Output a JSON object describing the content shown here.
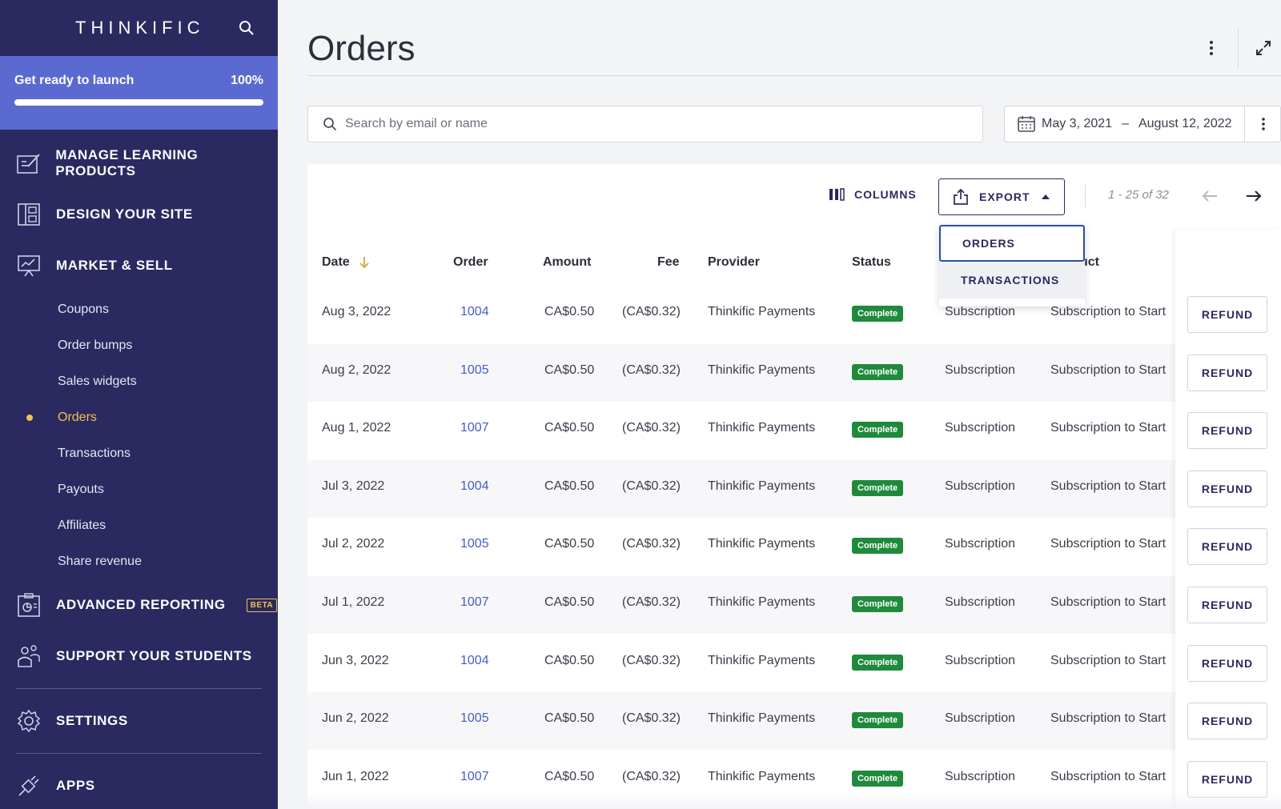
{
  "sidebar": {
    "logo": "THINKIFIC",
    "launch": {
      "label": "Get ready to launch",
      "percent": "100%",
      "progress": 1.0
    },
    "main_items": [
      {
        "label": "MANAGE LEARNING PRODUCTS",
        "icon": "edit-icon"
      },
      {
        "label": "DESIGN YOUR SITE",
        "icon": "layout-icon"
      },
      {
        "label": "MARKET & SELL",
        "icon": "presentation-icon"
      }
    ],
    "sub_items": [
      {
        "label": "Coupons",
        "active": false
      },
      {
        "label": "Order bumps",
        "active": false
      },
      {
        "label": "Sales widgets",
        "active": false
      },
      {
        "label": "Orders",
        "active": true
      },
      {
        "label": "Transactions",
        "active": false
      },
      {
        "label": "Payouts",
        "active": false
      },
      {
        "label": "Affiliates",
        "active": false
      },
      {
        "label": "Share revenue",
        "active": false
      }
    ],
    "advanced_reporting": {
      "label": "ADVANCED REPORTING",
      "badge": "BETA"
    },
    "support": "SUPPORT YOUR STUDENTS",
    "settings": "SETTINGS",
    "apps": "APPS",
    "accent": "#f3c14b"
  },
  "header": {
    "title": "Orders"
  },
  "search": {
    "placeholder": "Search by email or name",
    "value": ""
  },
  "date_range": {
    "start": "May 3, 2021",
    "separator": "–",
    "end": "August 12, 2022"
  },
  "toolbar": {
    "columns_label": "COLUMNS",
    "export_label": "EXPORT",
    "pagination": "1 - 25 of 32",
    "export_menu": [
      "ORDERS",
      "TRANSACTIONS"
    ]
  },
  "table": {
    "headers": [
      "Date",
      "Order",
      "Amount",
      "Fee",
      "Provider",
      "Status",
      "",
      "uct"
    ],
    "refund_label": "REFUND",
    "rows": [
      {
        "date": "Aug 3, 2022",
        "order": "1004",
        "amount": "CA$0.50",
        "fee": "(CA$0.32)",
        "provider": "Thinkific Payments",
        "status": "Complete",
        "type": "Subscription",
        "product": "Subscription to Start"
      },
      {
        "date": "Aug 2, 2022",
        "order": "1005",
        "amount": "CA$0.50",
        "fee": "(CA$0.32)",
        "provider": "Thinkific Payments",
        "status": "Complete",
        "type": "Subscription",
        "product": "Subscription to Start"
      },
      {
        "date": "Aug 1, 2022",
        "order": "1007",
        "amount": "CA$0.50",
        "fee": "(CA$0.32)",
        "provider": "Thinkific Payments",
        "status": "Complete",
        "type": "Subscription",
        "product": "Subscription to Start"
      },
      {
        "date": "Jul 3, 2022",
        "order": "1004",
        "amount": "CA$0.50",
        "fee": "(CA$0.32)",
        "provider": "Thinkific Payments",
        "status": "Complete",
        "type": "Subscription",
        "product": "Subscription to Start"
      },
      {
        "date": "Jul 2, 2022",
        "order": "1005",
        "amount": "CA$0.50",
        "fee": "(CA$0.32)",
        "provider": "Thinkific Payments",
        "status": "Complete",
        "type": "Subscription",
        "product": "Subscription to Start"
      },
      {
        "date": "Jul 1, 2022",
        "order": "1007",
        "amount": "CA$0.50",
        "fee": "(CA$0.32)",
        "provider": "Thinkific Payments",
        "status": "Complete",
        "type": "Subscription",
        "product": "Subscription to Start"
      },
      {
        "date": "Jun 3, 2022",
        "order": "1004",
        "amount": "CA$0.50",
        "fee": "(CA$0.32)",
        "provider": "Thinkific Payments",
        "status": "Complete",
        "type": "Subscription",
        "product": "Subscription to Start"
      },
      {
        "date": "Jun 2, 2022",
        "order": "1005",
        "amount": "CA$0.50",
        "fee": "(CA$0.32)",
        "provider": "Thinkific Payments",
        "status": "Complete",
        "type": "Subscription",
        "product": "Subscription to Start"
      },
      {
        "date": "Jun 1, 2022",
        "order": "1007",
        "amount": "CA$0.50",
        "fee": "(CA$0.32)",
        "provider": "Thinkific Payments",
        "status": "Complete",
        "type": "Subscription",
        "product": "Subscription to Start"
      }
    ]
  },
  "colors": {
    "sidebar_bg": "#2a2960",
    "launch_bg": "#5b6ad0",
    "status_complete": "#1f8a3b",
    "link": "#4a5bc4"
  }
}
